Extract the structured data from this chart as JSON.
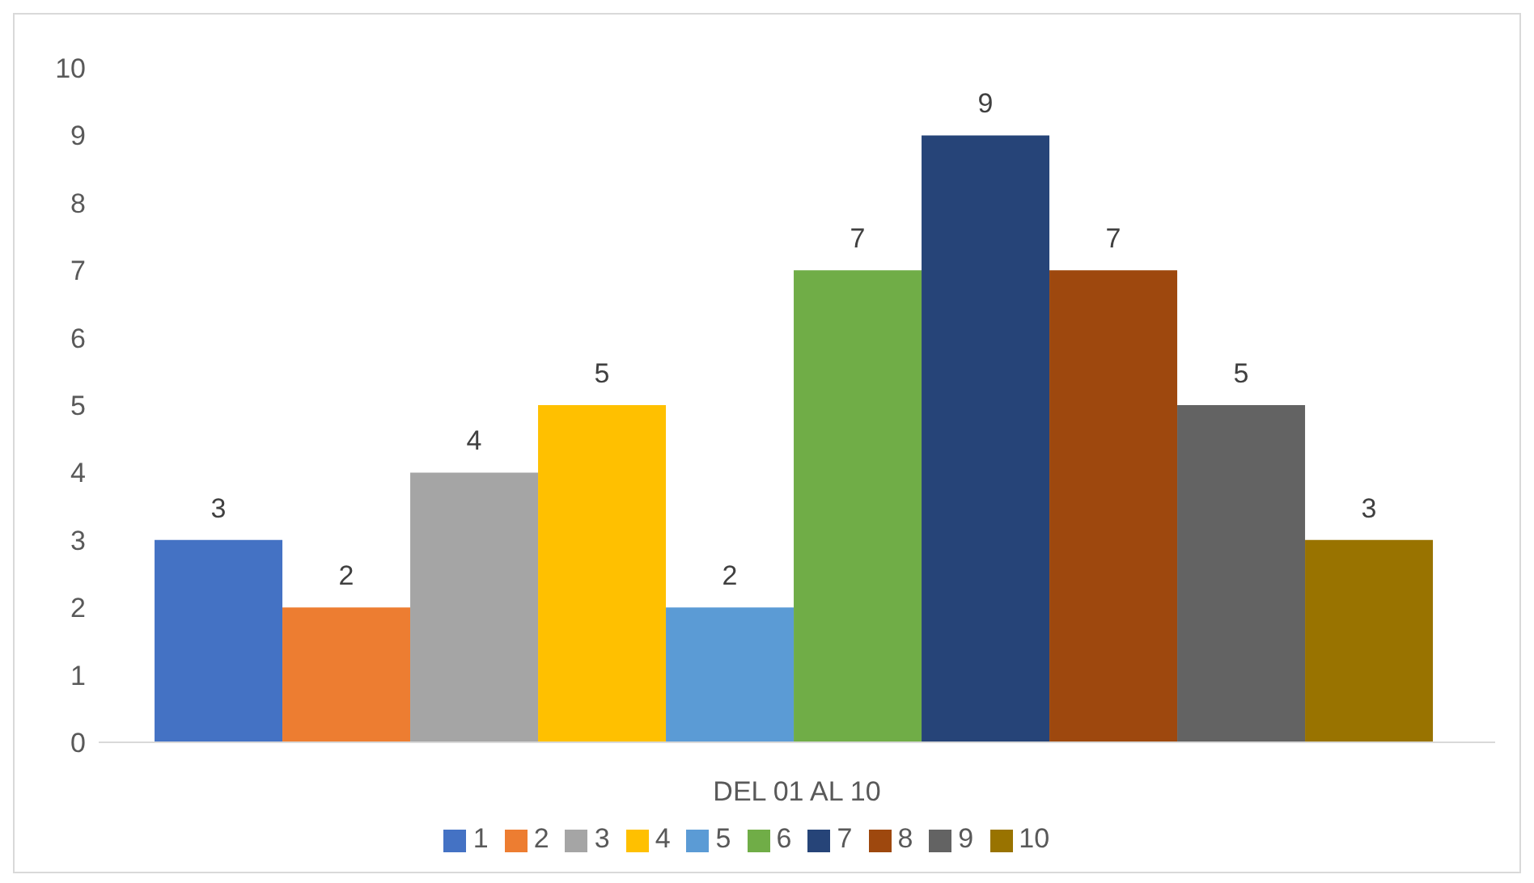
{
  "chart_data": {
    "type": "bar",
    "categories": [
      "DEL 01 AL 10"
    ],
    "series": [
      {
        "name": "1",
        "color": "#4472c4",
        "values": [
          3
        ]
      },
      {
        "name": "2",
        "color": "#ed7d31",
        "values": [
          2
        ]
      },
      {
        "name": "3",
        "color": "#a5a5a5",
        "values": [
          4
        ]
      },
      {
        "name": "4",
        "color": "#ffc000",
        "values": [
          5
        ]
      },
      {
        "name": "5",
        "color": "#5b9bd5",
        "values": [
          2
        ]
      },
      {
        "name": "6",
        "color": "#70ad47",
        "values": [
          7
        ]
      },
      {
        "name": "7",
        "color": "#264478",
        "values": [
          9
        ]
      },
      {
        "name": "8",
        "color": "#9e480e",
        "values": [
          7
        ]
      },
      {
        "name": "9",
        "color": "#636363",
        "values": [
          5
        ]
      },
      {
        "name": "10",
        "color": "#997300",
        "values": [
          3
        ]
      }
    ],
    "ylim": [
      0,
      10
    ],
    "yticks": [
      0,
      1,
      2,
      3,
      4,
      5,
      6,
      7,
      8,
      9,
      10
    ],
    "grid": false,
    "legend": "bottom",
    "data_labels": true
  }
}
